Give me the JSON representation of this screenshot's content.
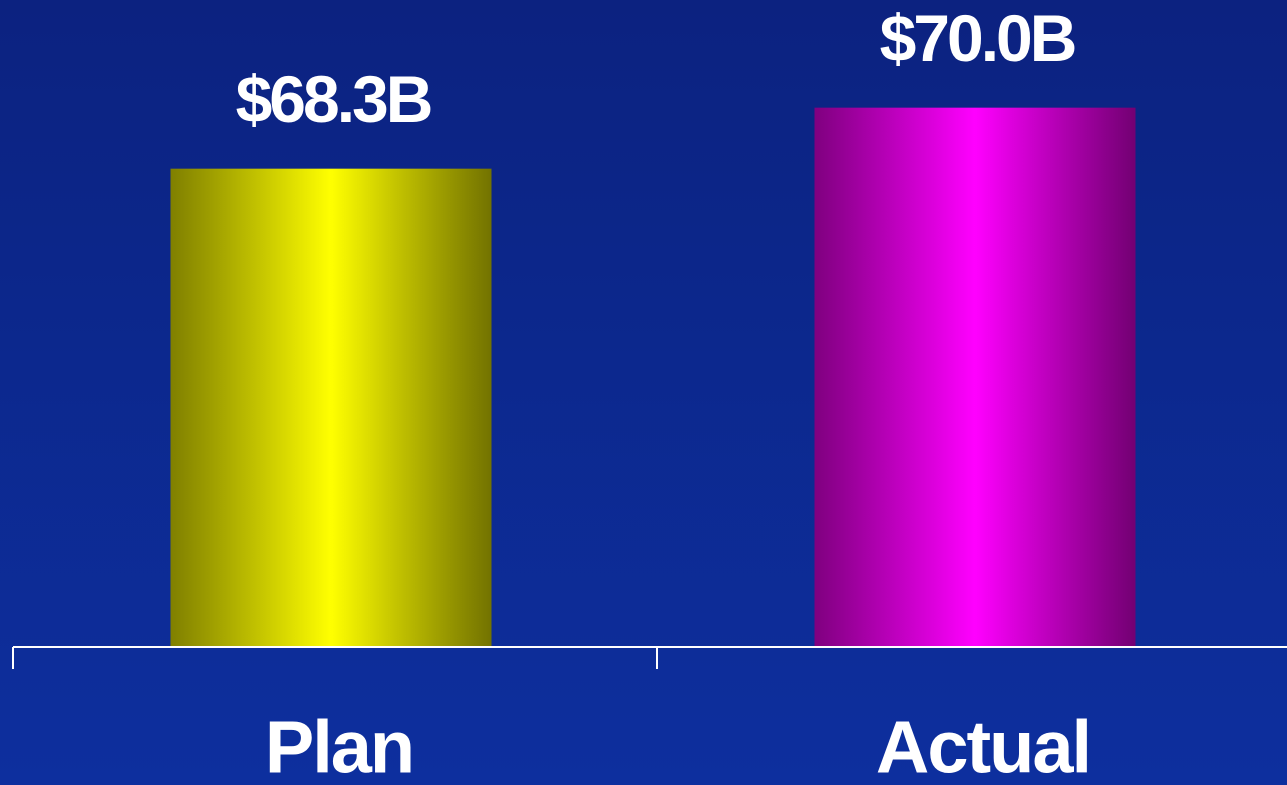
{
  "chart_data": {
    "type": "bar",
    "categories": [
      "Plan",
      "Actual"
    ],
    "values": [
      68.3,
      70.0
    ],
    "value_labels": [
      "$68.3B",
      "$70.0B"
    ],
    "colors": [
      "#ffff00",
      "#ff00ff"
    ],
    "ylim": [
      55,
      73
    ]
  }
}
